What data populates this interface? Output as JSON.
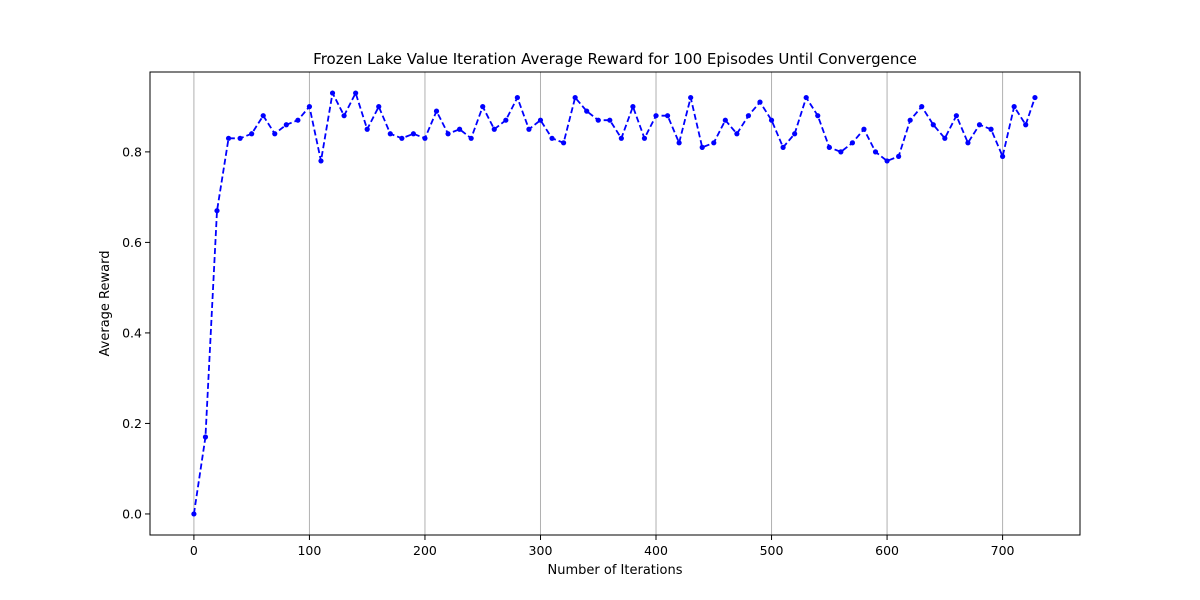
{
  "chart_data": {
    "type": "line",
    "title": "Frozen Lake Value Iteration Average Reward for 100 Episodes Until Convergence",
    "xlabel": "Number of Iterations",
    "ylabel": "Average Reward",
    "xlim": [
      -38,
      767
    ],
    "ylim": [
      -0.0465,
      0.9765
    ],
    "xticks": [
      0,
      100,
      200,
      300,
      400,
      500,
      600,
      700
    ],
    "yticks": [
      0.0,
      0.2,
      0.4,
      0.6,
      0.8
    ],
    "ytick_labels": [
      "0.0",
      "0.2",
      "0.4",
      "0.6",
      "0.8"
    ],
    "grid": "vertical",
    "line_style": "dashed",
    "marker": "dot",
    "color": "#0000ff",
    "grid_color": "#b0b0b0",
    "series": [
      {
        "x": [
          0,
          10,
          20,
          30,
          40,
          50,
          60,
          70,
          80,
          90,
          100,
          110,
          120,
          130,
          140,
          150,
          160,
          170,
          180,
          190,
          200,
          210,
          220,
          230,
          240,
          250,
          260,
          270,
          280,
          290,
          300,
          310,
          320,
          330,
          340,
          350,
          360,
          370,
          380,
          390,
          400,
          410,
          420,
          430,
          440,
          450,
          460,
          470,
          480,
          490,
          500,
          510,
          520,
          530,
          540,
          550,
          560,
          570,
          580,
          590,
          600,
          610,
          620,
          630,
          640,
          650,
          660,
          670,
          680,
          690,
          700,
          710,
          720,
          728
        ],
        "values": [
          0.0,
          0.17,
          0.67,
          0.83,
          0.83,
          0.84,
          0.88,
          0.84,
          0.86,
          0.87,
          0.9,
          0.78,
          0.93,
          0.88,
          0.93,
          0.85,
          0.9,
          0.84,
          0.83,
          0.84,
          0.83,
          0.89,
          0.84,
          0.85,
          0.83,
          0.9,
          0.85,
          0.87,
          0.92,
          0.85,
          0.87,
          0.83,
          0.82,
          0.92,
          0.89,
          0.87,
          0.87,
          0.83,
          0.9,
          0.83,
          0.88,
          0.88,
          0.82,
          0.92,
          0.81,
          0.82,
          0.87,
          0.84,
          0.88,
          0.91,
          0.87,
          0.81,
          0.84,
          0.92,
          0.88,
          0.81,
          0.8,
          0.82,
          0.85,
          0.8,
          0.78,
          0.79,
          0.87,
          0.9,
          0.86,
          0.83,
          0.88,
          0.82,
          0.86,
          0.85,
          0.79,
          0.9,
          0.86,
          0.92
        ]
      }
    ]
  }
}
